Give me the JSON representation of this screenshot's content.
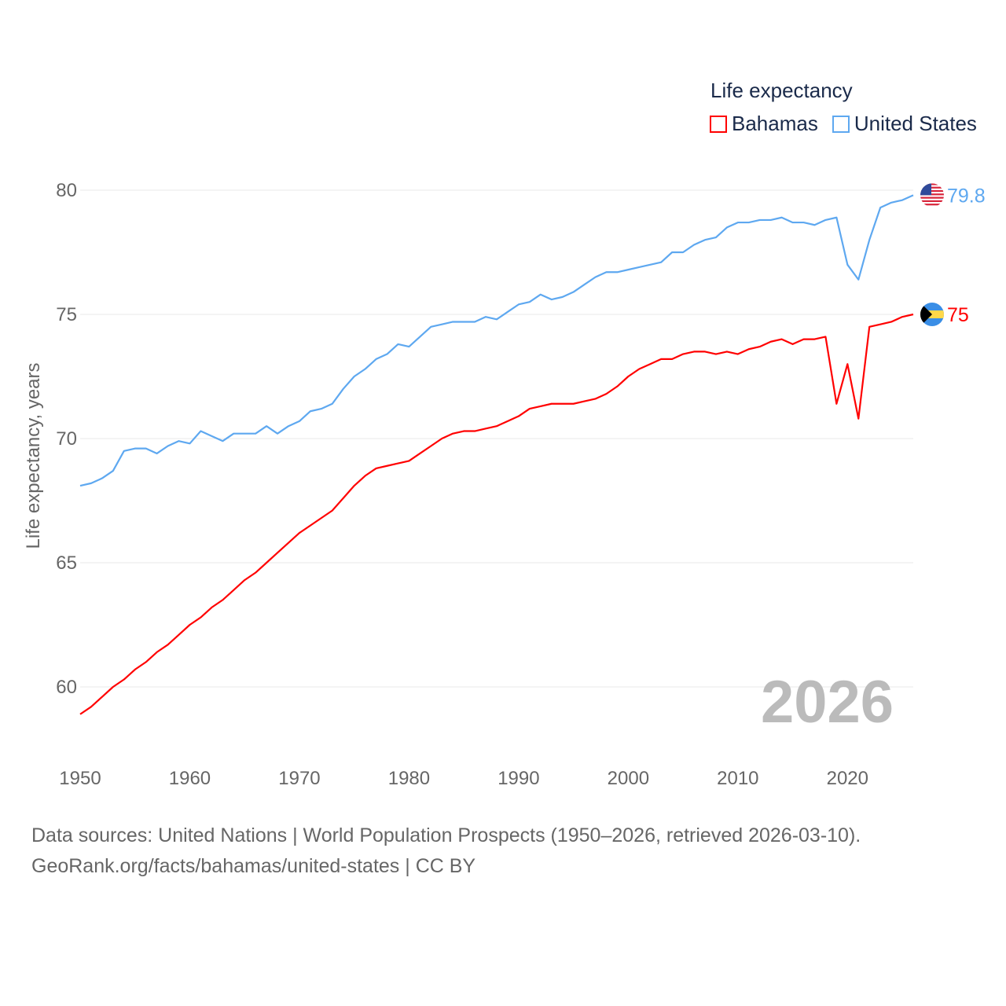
{
  "chart_data": {
    "type": "line",
    "title": "",
    "legend_title": "Life expectancy",
    "legend_position": "top-right",
    "ylabel": "Life expectancy, years",
    "xlabel": "",
    "xlim": [
      1950,
      2026
    ],
    "ylim": [
      58.5,
      80.8
    ],
    "y_ticks": [
      "60",
      "65",
      "70",
      "75",
      "80"
    ],
    "x_ticks": [
      "1950",
      "1960",
      "1970",
      "1980",
      "1990",
      "2000",
      "2010",
      "2020"
    ],
    "grid": true,
    "current_year": "2026",
    "series": [
      {
        "name": "Bahamas",
        "color": "#ff0000",
        "end_label": "75",
        "values": [
          58.9,
          59.2,
          59.6,
          60.0,
          60.3,
          60.7,
          61.0,
          61.4,
          61.7,
          62.1,
          62.5,
          62.8,
          63.2,
          63.5,
          63.9,
          64.3,
          64.6,
          65.0,
          65.4,
          65.8,
          66.2,
          66.5,
          66.8,
          67.1,
          67.6,
          68.1,
          68.5,
          68.8,
          68.9,
          69.0,
          69.1,
          69.4,
          69.7,
          70.0,
          70.2,
          70.3,
          70.3,
          70.4,
          70.5,
          70.7,
          70.9,
          71.2,
          71.3,
          71.4,
          71.4,
          71.4,
          71.5,
          71.6,
          71.8,
          72.1,
          72.5,
          72.8,
          73.0,
          73.2,
          73.2,
          73.4,
          73.5,
          73.5,
          73.4,
          73.5,
          73.4,
          73.6,
          73.7,
          73.9,
          74.0,
          73.8,
          74.0,
          74.0,
          74.1,
          71.4,
          73.0,
          70.8,
          74.5,
          74.6,
          74.7,
          74.9,
          75.0
        ]
      },
      {
        "name": "United States",
        "color": "#5ea8f0",
        "end_label": "79.8",
        "values": [
          68.1,
          68.2,
          68.4,
          68.7,
          69.5,
          69.6,
          69.6,
          69.4,
          69.7,
          69.9,
          69.8,
          70.3,
          70.1,
          69.9,
          70.2,
          70.2,
          70.2,
          70.5,
          70.2,
          70.5,
          70.7,
          71.1,
          71.2,
          71.4,
          72.0,
          72.5,
          72.8,
          73.2,
          73.4,
          73.8,
          73.7,
          74.1,
          74.5,
          74.6,
          74.7,
          74.7,
          74.7,
          74.9,
          74.8,
          75.1,
          75.4,
          75.5,
          75.8,
          75.6,
          75.7,
          75.9,
          76.2,
          76.5,
          76.7,
          76.7,
          76.8,
          76.9,
          77.0,
          77.1,
          77.5,
          77.5,
          77.8,
          78.0,
          78.1,
          78.5,
          78.7,
          78.7,
          78.8,
          78.8,
          78.9,
          78.7,
          78.7,
          78.6,
          78.8,
          78.9,
          77.0,
          76.4,
          78.0,
          79.3,
          79.5,
          79.6,
          79.8
        ]
      }
    ]
  },
  "source": {
    "line1": "Data sources: United Nations | World Population Prospects (1950–2026, retrieved 2026-03-10).",
    "line2": "GeoRank.org/facts/bahamas/united-states | CC BY"
  }
}
